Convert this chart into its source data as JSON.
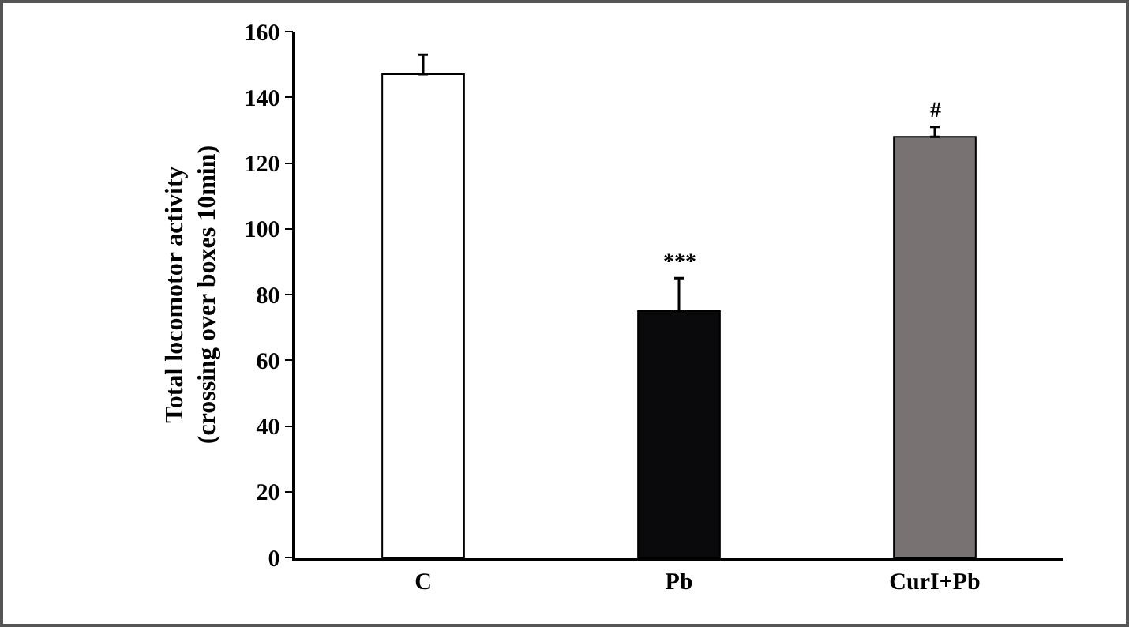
{
  "chart_data": {
    "type": "bar",
    "ylabel": "Total locomotor activity\n(crossing over boxes 10min)",
    "categories": [
      "C",
      "Pb",
      "CurI+Pb"
    ],
    "values": [
      147,
      75,
      128
    ],
    "colors": [
      "#ffffff",
      "#0a0a0c",
      "#787372"
    ],
    "errors": [
      [
        147,
        153
      ],
      [
        75,
        85
      ],
      [
        128,
        131
      ]
    ],
    "annotations": [
      {
        "text": "***",
        "x": "Pb",
        "y": 85
      },
      {
        "text": "#",
        "x": "CurI+Pb",
        "y": 131
      }
    ],
    "ylim": [
      0,
      160
    ],
    "yticks": [
      0,
      20,
      40,
      60,
      80,
      100,
      120,
      140,
      160
    ]
  }
}
